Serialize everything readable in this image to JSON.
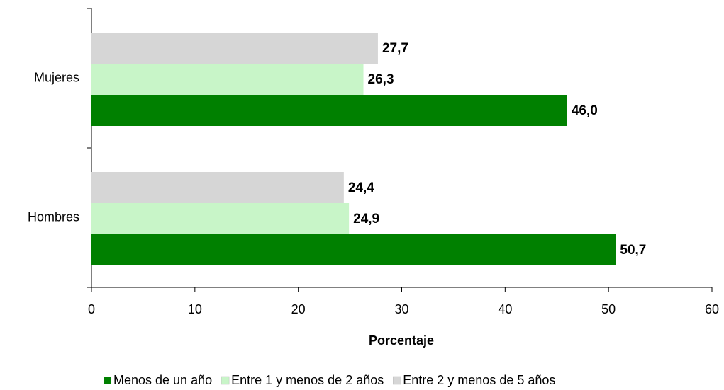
{
  "chart_data": {
    "type": "hbar",
    "categories": [
      "Mujeres",
      "Hombres"
    ],
    "series": [
      {
        "name": "Menos de un año",
        "color": "#008000",
        "values": [
          46.0,
          50.7
        ],
        "value_labels": [
          "46,0",
          "50,7"
        ]
      },
      {
        "name": "Entre 1 y menos de 2 años",
        "color": "#c8f5c8",
        "values": [
          26.3,
          24.9
        ],
        "value_labels": [
          "26,3",
          "24,9"
        ]
      },
      {
        "name": "Entre 2 y menos de 5 años",
        "color": "#d6d6d6",
        "values": [
          27.7,
          24.4
        ],
        "value_labels": [
          "27,7",
          "24,4"
        ]
      }
    ],
    "xlabel": "Porcentaje",
    "xlim": [
      0,
      60
    ],
    "xticks": [
      0,
      10,
      20,
      30,
      40,
      50,
      60
    ],
    "legend": "bottom"
  }
}
